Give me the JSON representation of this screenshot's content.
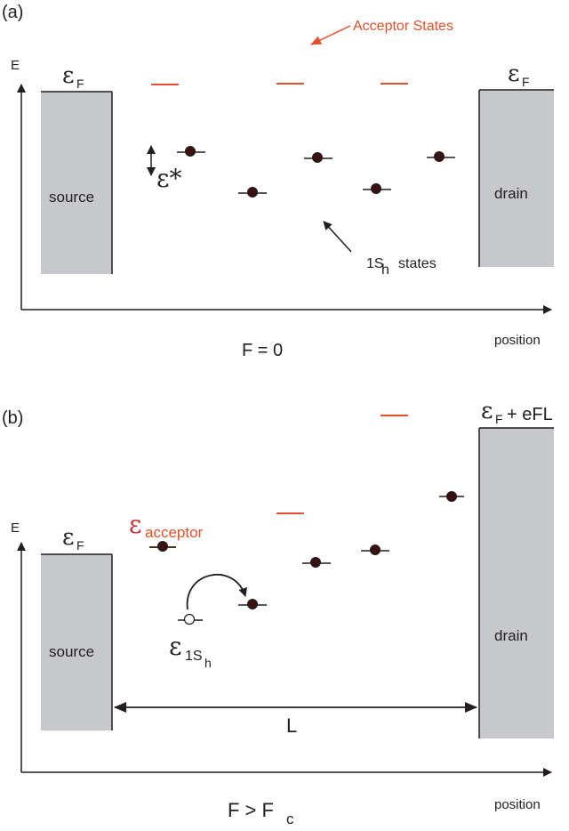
{
  "colors": {
    "ink": "#231f20",
    "dot": "#3a1010",
    "acceptor": "#e5502a",
    "acceptor_text": "#c7312a",
    "electrode": "#c6c8cb"
  },
  "panel_a": {
    "panel_label": "(a)",
    "axis_y_label": "E",
    "axis_x_label": "position",
    "fermi_source": "ε",
    "fermi_source_sub": "F",
    "fermi_drain": "ε",
    "fermi_drain_sub": "F",
    "source_label": "source",
    "drain_label": "drain",
    "acceptor_annotation": "Acceptor States",
    "epsilon_star": "ε*",
    "states_annotation": "1S",
    "states_annotation_sub": "h",
    "states_annotation_tail": "states",
    "field_condition": "F = 0"
  },
  "panel_b": {
    "panel_label": "(b)",
    "axis_y_label": "E",
    "axis_x_label": "position",
    "fermi_source": "ε",
    "fermi_source_sub": "F",
    "fermi_drain": "ε",
    "fermi_drain_sub": "F",
    "fermi_drain_tail": "+ eFL",
    "source_label": "source",
    "drain_label": "drain",
    "acceptor_label": "ε",
    "acceptor_label_sub": "acceptor",
    "state_label": "ε",
    "state_label_sub": "1S",
    "state_label_subsub": "h",
    "length_label": "L",
    "field_condition": "F > F",
    "field_condition_sub": "c"
  }
}
